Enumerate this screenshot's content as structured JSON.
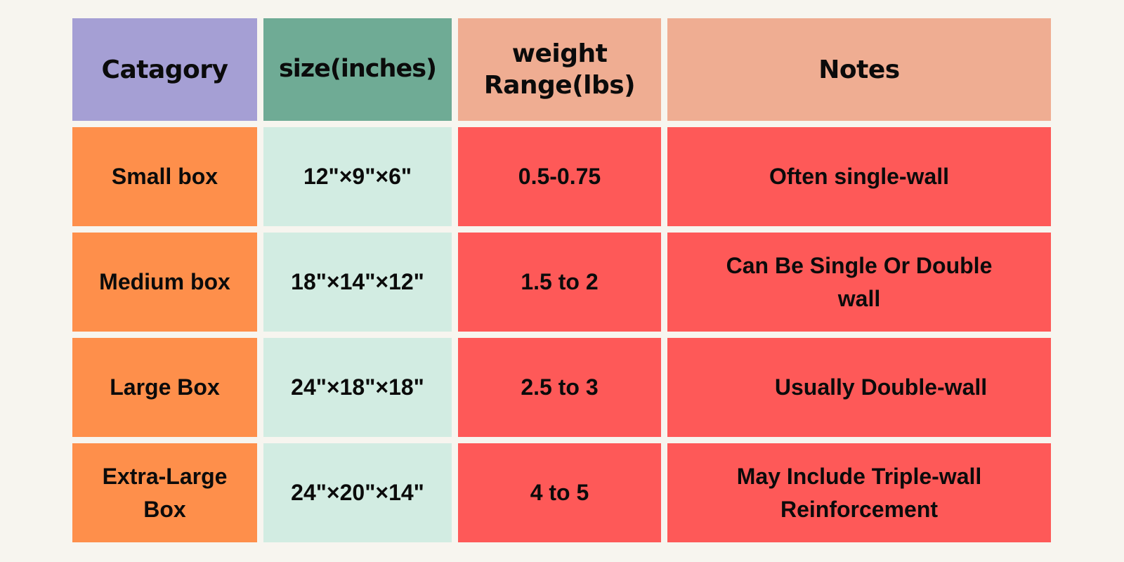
{
  "colors": {
    "background": "#f7f5ef",
    "header_category": "#a59fd4",
    "header_size": "#6fab95",
    "header_weight": "#efad92",
    "header_notes": "#efad92",
    "category_cells": "#fe8f4b",
    "size_cells": "#d2ece2",
    "weight_cells": "#fe5958",
    "notes_cells": "#fe5958"
  },
  "table": {
    "headers": [
      "Catagory",
      "size(inches)",
      "weight Range(lbs)",
      "Notes"
    ],
    "rows": [
      [
        "Small box",
        "12\"×9\"×6\"",
        "0.5-0.75",
        "Often single-wall"
      ],
      [
        "Medium box",
        "18\"×14\"×12\"",
        "1.5 to 2",
        "Can Be Single Or Double wall"
      ],
      [
        "Large Box",
        "24\"×18\"×18\"",
        "2.5 to 3",
        "Usually Double-wall"
      ],
      [
        "Extra-Large Box",
        "24\"×20\"×14\"",
        "4 to 5",
        "May Include Triple-wall Reinforcement"
      ]
    ]
  }
}
